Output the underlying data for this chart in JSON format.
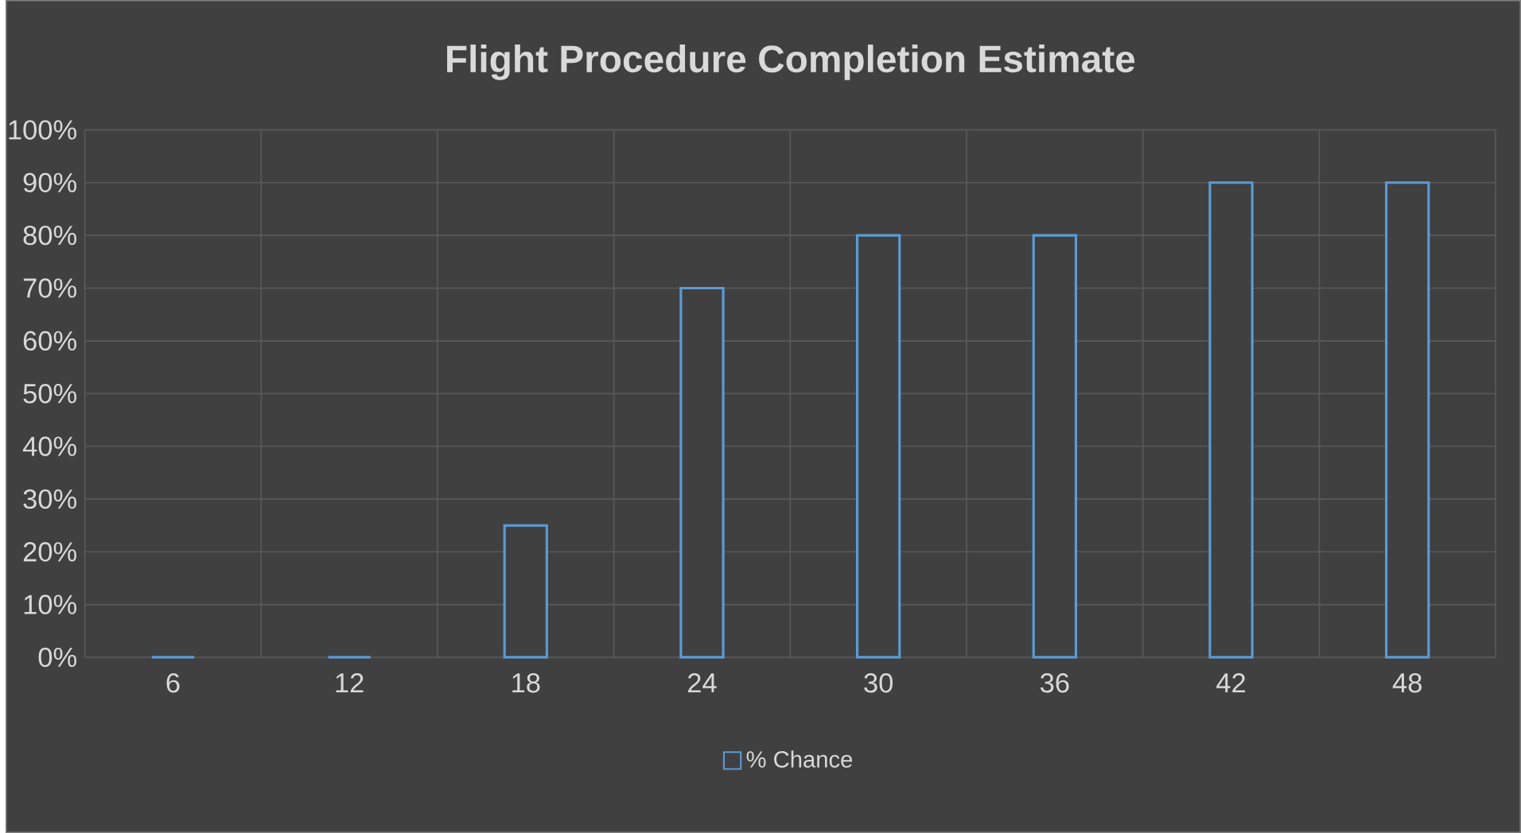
{
  "chart_data": {
    "type": "bar",
    "title": "Flight Procedure Completion Estimate",
    "categories": [
      "6",
      "12",
      "18",
      "24",
      "30",
      "36",
      "42",
      "48"
    ],
    "series": [
      {
        "name": "% Chance",
        "color": "#5b9bd5",
        "values": [
          0,
          0,
          25,
          70,
          80,
          80,
          90,
          90
        ]
      }
    ],
    "ylim": [
      0,
      100
    ],
    "yticks": [
      {
        "value": 0,
        "label": "0%"
      },
      {
        "value": 10,
        "label": "10%"
      },
      {
        "value": 20,
        "label": "20%"
      },
      {
        "value": 30,
        "label": "30%"
      },
      {
        "value": 40,
        "label": "40%"
      },
      {
        "value": 50,
        "label": "50%"
      },
      {
        "value": 60,
        "label": "60%"
      },
      {
        "value": 70,
        "label": "70%"
      },
      {
        "value": 80,
        "label": "80%"
      },
      {
        "value": 90,
        "label": "90%"
      },
      {
        "value": 100,
        "label": "100%"
      }
    ],
    "grid": true,
    "legend": "bottom"
  }
}
